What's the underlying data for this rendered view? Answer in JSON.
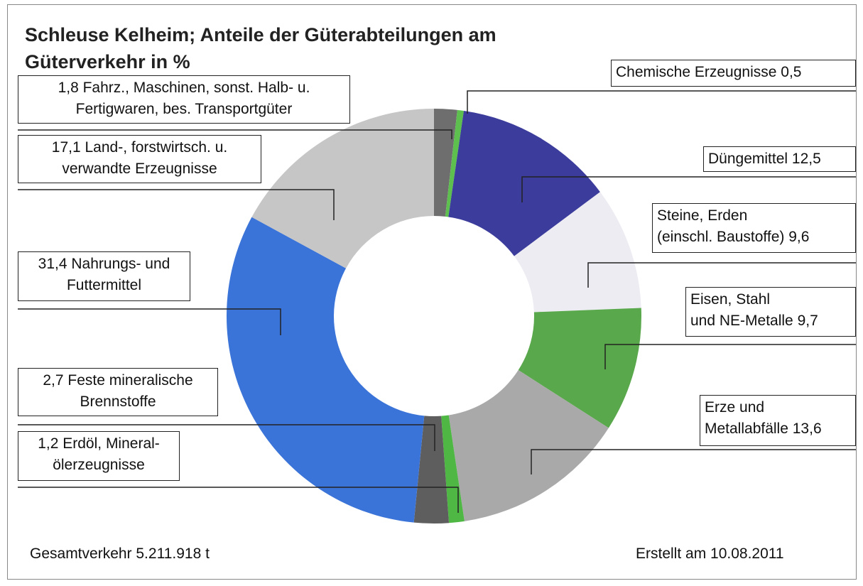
{
  "chart_data": {
    "type": "donut",
    "title": "Schleuse Kelheim; Anteile der Güterabteilungen am Güterverkehr in %",
    "categories": [
      "Fahrz., Maschinen, sonst. Halb- u.\nFertigwaren, bes. Transportgüter",
      "Chemische Erzeugnisse",
      "Düngemittel",
      "Steine, Erden\n(einschl. Baustoffe)",
      "Eisen, Stahl\nund NE-Metalle",
      "Erze und\nMetallabfälle",
      "Erdöl, Mineral-\nölerzeugnisse",
      "Feste mineralische\nBrennstoffe",
      "Nahrungs- und\nFuttermittel",
      "Land-, forstwirtsch. u.\nverwandte Erzeugnisse"
    ],
    "values": [
      1.8,
      0.5,
      12.5,
      9.6,
      9.7,
      13.6,
      1.2,
      2.7,
      31.4,
      17.1
    ],
    "value_labels": [
      "1,8",
      "0,5",
      "12,5",
      "9,6",
      "9,7",
      "13,6",
      "1,2",
      "2,7",
      "31,4",
      "17,1"
    ],
    "colors": [
      "#6e6e6e",
      "#5cbf4e",
      "#3c3c9c",
      "#ececf2",
      "#5aa84c",
      "#a9a9a9",
      "#4fb845",
      "#5e5e5e",
      "#3b74d8",
      "#c6c6c6"
    ],
    "footnote_left": "Gesamtverkehr 5.211.918 t",
    "footnote_right": "Erstellt am 10.08.2011"
  }
}
